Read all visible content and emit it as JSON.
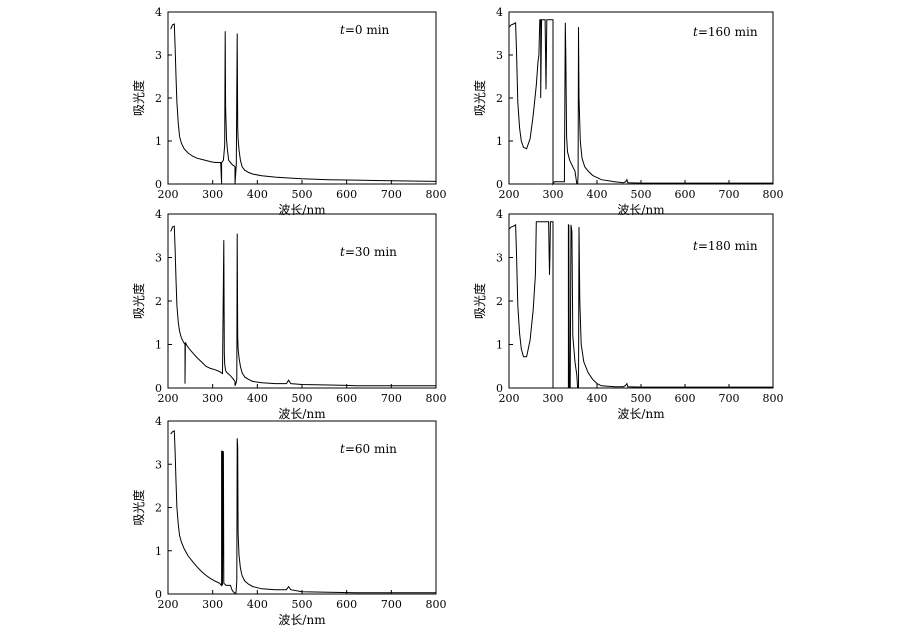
{
  "chart_data": [
    {
      "type": "line",
      "annotation": {
        "var": "t",
        "rest": "=0 min"
      },
      "xlabel": "波长/nm",
      "ylabel": "吸光度",
      "xlim": [
        200,
        800
      ],
      "ylim": [
        0,
        4
      ],
      "xticks": [
        200,
        300,
        400,
        500,
        600,
        700,
        800
      ],
      "yticks": [
        0,
        1,
        2,
        3,
        4
      ],
      "grid": false,
      "series": [
        {
          "x": [
            206,
            210,
            214,
            216,
            218,
            220,
            223,
            226,
            230,
            236,
            245,
            255,
            265,
            280,
            295,
            305,
            318,
            320,
            320,
            320,
            324,
            327,
            328,
            329,
            331,
            333,
            336,
            340,
            344,
            348,
            350,
            350,
            350,
            353,
            355,
            356,
            357,
            359,
            362,
            366,
            372,
            380,
            390,
            410,
            440,
            470,
            500,
            560,
            620,
            680,
            740,
            800
          ],
          "y": [
            3.6,
            3.7,
            3.72,
            3.2,
            2.5,
            1.9,
            1.4,
            1.1,
            0.95,
            0.82,
            0.72,
            0.65,
            0.6,
            0.56,
            0.52,
            0.5,
            0.5,
            0.0,
            0.0,
            0.5,
            0.55,
            0.9,
            3.55,
            1.8,
            1.05,
            0.8,
            0.55,
            0.5,
            0.45,
            0.42,
            0.4,
            0.0,
            0.0,
            0.45,
            3.5,
            1.3,
            1.05,
            0.8,
            0.55,
            0.4,
            0.32,
            0.27,
            0.23,
            0.19,
            0.16,
            0.14,
            0.12,
            0.1,
            0.09,
            0.08,
            0.07,
            0.06
          ]
        }
      ]
    },
    {
      "type": "line",
      "annotation": {
        "var": "t",
        "rest": "=30 min"
      },
      "xlabel": "波长/nm",
      "ylabel": "吸光度",
      "xlim": [
        200,
        800
      ],
      "ylim": [
        0,
        4
      ],
      "xticks": [
        200,
        300,
        400,
        500,
        600,
        700,
        800
      ],
      "yticks": [
        0,
        1,
        2,
        3,
        4
      ],
      "grid": false,
      "series": [
        {
          "x": [
            206,
            210,
            214,
            216,
            218,
            220,
            223,
            226,
            230,
            235,
            238,
            238,
            239,
            242,
            248,
            256,
            265,
            275,
            285,
            295,
            305,
            315,
            322,
            325,
            326,
            327,
            329,
            332,
            336,
            340,
            345,
            348,
            350,
            350,
            352,
            354,
            355,
            356,
            357,
            359,
            362,
            366,
            372,
            380,
            390,
            410,
            440,
            465,
            470,
            475,
            500,
            560,
            600,
            620,
            700,
            800
          ],
          "y": [
            3.6,
            3.7,
            3.72,
            3.2,
            2.5,
            1.9,
            1.5,
            1.3,
            1.15,
            1.05,
            1.0,
            0.1,
            1.05,
            0.98,
            0.9,
            0.8,
            0.7,
            0.6,
            0.5,
            0.45,
            0.42,
            0.38,
            0.33,
            3.4,
            0.8,
            0.55,
            0.4,
            0.35,
            0.32,
            0.28,
            0.22,
            0.18,
            0.15,
            0.05,
            0.1,
            0.2,
            3.55,
            1.2,
            0.9,
            0.7,
            0.5,
            0.35,
            0.25,
            0.2,
            0.15,
            0.12,
            0.1,
            0.1,
            0.18,
            0.1,
            0.08,
            0.07,
            0.06,
            0.05,
            0.05,
            0.05
          ]
        }
      ]
    },
    {
      "type": "line",
      "annotation": {
        "var": "t",
        "rest": "=60 min"
      },
      "xlabel": "波长/nm",
      "ylabel": "吸光度",
      "xlim": [
        200,
        800
      ],
      "ylim": [
        0,
        4
      ],
      "xticks": [
        200,
        300,
        400,
        500,
        600,
        700,
        800
      ],
      "yticks": [
        0,
        1,
        2,
        3,
        4
      ],
      "grid": false,
      "series": [
        {
          "x": [
            206,
            210,
            214,
            216,
            218,
            220,
            223,
            226,
            230,
            236,
            245,
            255,
            265,
            275,
            285,
            295,
            305,
            315,
            318,
            320,
            320,
            322,
            322,
            324,
            325,
            330,
            335,
            340,
            343,
            346,
            350,
            350,
            352,
            354,
            355,
            356,
            357,
            359,
            362,
            366,
            372,
            380,
            390,
            410,
            440,
            465,
            470,
            475,
            500,
            560,
            620,
            700,
            800
          ],
          "y": [
            3.7,
            3.75,
            3.77,
            3.3,
            2.6,
            2.0,
            1.6,
            1.35,
            1.2,
            1.05,
            0.88,
            0.75,
            0.63,
            0.52,
            0.43,
            0.36,
            0.3,
            0.25,
            0.22,
            0.2,
            3.3,
            3.3,
            0.2,
            3.3,
            0.25,
            0.2,
            0.2,
            0.2,
            0.1,
            0.05,
            0.02,
            0.0,
            0.0,
            0.3,
            3.6,
            3.4,
            1.4,
            0.9,
            0.6,
            0.42,
            0.3,
            0.23,
            0.17,
            0.12,
            0.1,
            0.1,
            0.17,
            0.1,
            0.05,
            0.04,
            0.03,
            0.03,
            0.03
          ]
        }
      ]
    },
    {
      "type": "line",
      "annotation": {
        "var": "t",
        "rest": "=160 min"
      },
      "xlabel": "波长/nm",
      "ylabel": "吸光度",
      "xlim": [
        200,
        800
      ],
      "ylim": [
        0,
        4
      ],
      "xticks": [
        200,
        300,
        400,
        500,
        600,
        700,
        800
      ],
      "yticks": [
        0,
        1,
        2,
        3,
        4
      ],
      "grid": false,
      "series": [
        {
          "x": [
            200,
            205,
            210,
            215,
            217,
            220,
            224,
            228,
            233,
            240,
            248,
            255,
            262,
            266,
            268,
            270,
            272,
            272,
            274,
            276,
            278,
            280,
            282,
            284,
            286,
            288,
            290,
            292,
            294,
            296,
            298,
            300,
            300,
            303,
            315,
            326,
            328,
            329,
            331,
            333,
            338,
            345,
            350,
            354,
            356,
            357,
            358,
            359,
            362,
            366,
            372,
            380,
            390,
            410,
            440,
            460,
            465,
            468,
            470,
            500,
            560,
            620,
            700,
            800
          ],
          "y": [
            3.65,
            3.7,
            3.72,
            3.75,
            3.1,
            1.9,
            1.3,
            1.0,
            0.85,
            0.82,
            1.05,
            1.6,
            2.3,
            2.85,
            3.0,
            3.82,
            3.82,
            2.0,
            3.82,
            3.82,
            3.82,
            3.82,
            3.82,
            2.2,
            3.82,
            3.82,
            3.82,
            3.82,
            3.82,
            3.82,
            3.82,
            3.82,
            0.0,
            0.05,
            0.05,
            0.05,
            3.75,
            3.0,
            1.1,
            0.75,
            0.55,
            0.4,
            0.3,
            0.0,
            0.0,
            0.2,
            3.65,
            2.0,
            1.0,
            0.6,
            0.4,
            0.3,
            0.2,
            0.1,
            0.05,
            0.03,
            0.05,
            0.1,
            0.03,
            0.02,
            0.02,
            0.02,
            0.02,
            0.02
          ]
        }
      ]
    },
    {
      "type": "line",
      "annotation": {
        "var": "t",
        "rest": "=180 min"
      },
      "xlabel": "波长/nm",
      "ylabel": "吸光度",
      "xlim": [
        200,
        800
      ],
      "ylim": [
        0,
        4
      ],
      "xticks": [
        200,
        300,
        400,
        500,
        600,
        700,
        800
      ],
      "yticks": [
        0,
        1,
        2,
        3,
        4
      ],
      "grid": false,
      "series": [
        {
          "x": [
            200,
            205,
            210,
            215,
            217,
            220,
            224,
            228,
            233,
            240,
            248,
            255,
            260,
            262,
            262,
            265,
            270,
            275,
            280,
            285,
            290,
            292,
            293,
            294,
            296,
            298,
            300,
            300,
            310,
            320,
            330,
            334,
            335,
            335,
            336,
            337,
            339,
            341,
            343,
            345,
            350,
            354,
            356,
            358,
            359,
            361,
            364,
            370,
            380,
            390,
            400,
            410,
            440,
            460,
            465,
            468,
            470,
            500,
            560,
            620,
            700,
            800
          ],
          "y": [
            3.65,
            3.7,
            3.72,
            3.75,
            3.1,
            1.9,
            1.25,
            0.9,
            0.72,
            0.72,
            1.1,
            1.8,
            2.6,
            3.82,
            3.82,
            3.82,
            3.82,
            3.82,
            3.82,
            3.82,
            3.82,
            2.6,
            3.0,
            3.82,
            3.82,
            3.82,
            3.82,
            0.0,
            0.0,
            0.0,
            0.0,
            0.0,
            0.0,
            3.75,
            3.75,
            0.0,
            0.0,
            3.75,
            3.6,
            1.2,
            0.6,
            0.3,
            0.0,
            0.0,
            3.7,
            2.0,
            1.0,
            0.6,
            0.35,
            0.2,
            0.1,
            0.05,
            0.03,
            0.03,
            0.06,
            0.1,
            0.03,
            0.02,
            0.02,
            0.02,
            0.02,
            0.02
          ]
        }
      ]
    }
  ]
}
